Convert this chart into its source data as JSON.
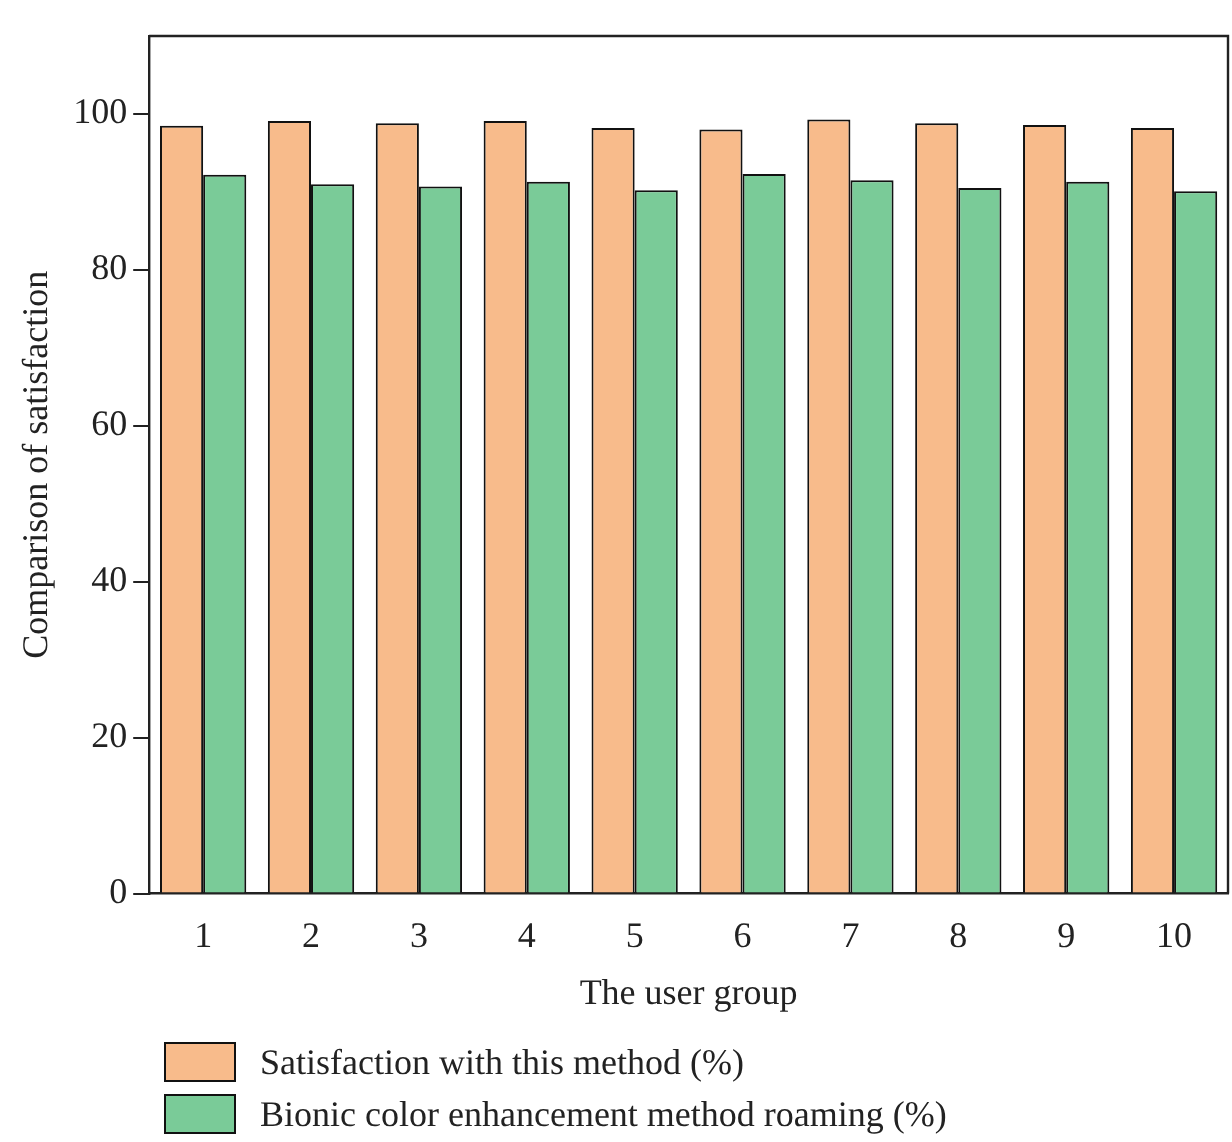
{
  "chart_data": {
    "type": "bar",
    "xlabel": "The user group",
    "ylabel": "Comparison of satisfaction",
    "categories": [
      "1",
      "2",
      "3",
      "4",
      "5",
      "6",
      "7",
      "8",
      "9",
      "10"
    ],
    "series": [
      {
        "name": "Satisfaction with this method (%)",
        "color": "#f8bb8b",
        "values": [
          98.5,
          99.1,
          98.8,
          99.1,
          98.2,
          98.0,
          99.3,
          98.8,
          98.6,
          98.2
        ]
      },
      {
        "name": "Bionic color enhancement method roaming (%)",
        "color": "#7acb98",
        "values": [
          92.2,
          91.0,
          90.7,
          91.3,
          90.2,
          92.3,
          91.5,
          90.5,
          91.3,
          90.1
        ]
      }
    ],
    "ylim": [
      0,
      110
    ],
    "yticks": [
      0,
      20,
      40,
      60,
      80,
      100
    ],
    "grid": false,
    "legend": "bottom"
  }
}
